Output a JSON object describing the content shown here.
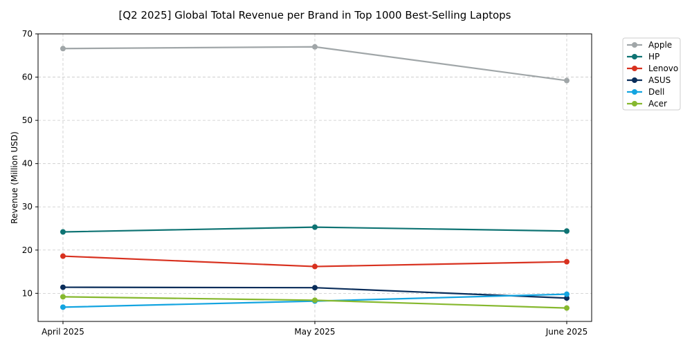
{
  "chart_data": {
    "type": "line",
    "title": "[Q2 2025] Global Total Revenue per Brand in Top 1000 Best-Selling Laptops",
    "xlabel": "",
    "ylabel": "Revenue (Million USD)",
    "categories": [
      "April 2025",
      "May 2025",
      "June 2025"
    ],
    "ylim": [
      3.5,
      70
    ],
    "yticks": [
      10,
      20,
      30,
      40,
      50,
      60,
      70
    ],
    "grid": true,
    "legend_position": "outside-top-right",
    "series": [
      {
        "name": "Apple",
        "color": "#a0a6a8",
        "values": [
          66.6,
          67.0,
          59.2
        ]
      },
      {
        "name": "HP",
        "color": "#0e7373",
        "values": [
          24.2,
          25.3,
          24.4
        ]
      },
      {
        "name": "Lenovo",
        "color": "#d8311f",
        "values": [
          18.6,
          16.2,
          17.3
        ]
      },
      {
        "name": "ASUS",
        "color": "#0a2d5a",
        "values": [
          11.4,
          11.3,
          8.9
        ]
      },
      {
        "name": "Dell",
        "color": "#13a4e0",
        "values": [
          6.8,
          8.2,
          9.8
        ]
      },
      {
        "name": "Acer",
        "color": "#86b82e",
        "values": [
          9.2,
          8.4,
          6.6
        ]
      }
    ]
  }
}
